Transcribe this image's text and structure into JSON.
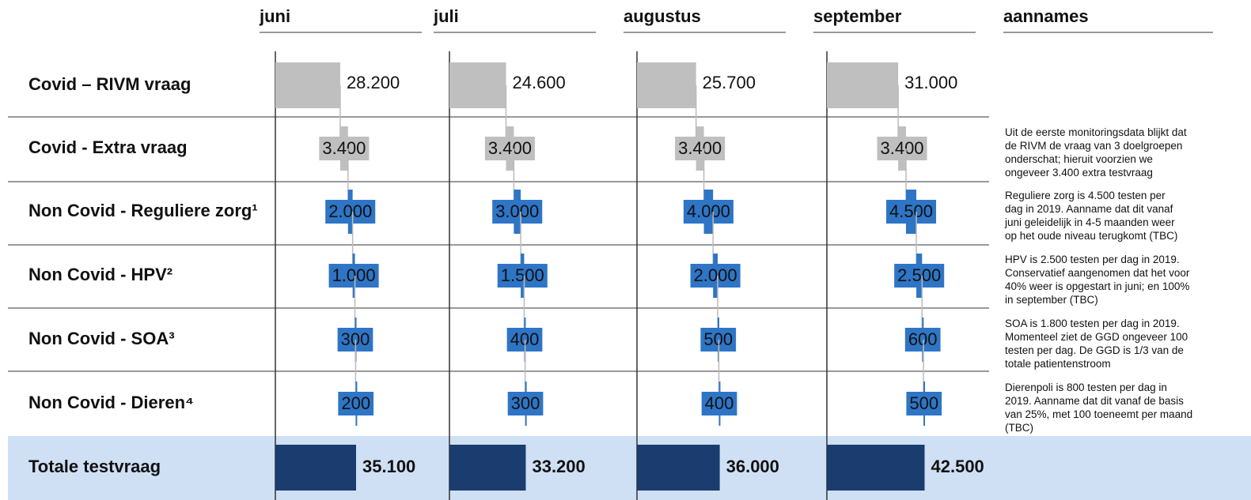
{
  "chart_data": {
    "type": "waterfall",
    "categories": [
      "Covid – RIVM vraag",
      "Covid - Extra vraag",
      "Non Covid - Reguliere zorg¹",
      "Non Covid - HPV²",
      "Non Covid - SOA³",
      "Non Covid - Dieren⁴",
      "Totale testvraag"
    ],
    "category_colors": [
      "#bfbfbf",
      "#bfbfbf",
      "#2e75c6",
      "#2e75c6",
      "#2e75c6",
      "#2e75c6",
      "#1a3c6e"
    ],
    "total_index": 6,
    "series": [
      {
        "name": "juni",
        "values": [
          28200,
          3400,
          2000,
          1000,
          300,
          200,
          35100
        ],
        "value_labels": [
          "28.200",
          "3.400",
          "2.000",
          "1.000",
          "300",
          "200",
          "35.100"
        ]
      },
      {
        "name": "juli",
        "values": [
          24600,
          3400,
          3000,
          1500,
          400,
          300,
          33200
        ],
        "value_labels": [
          "24.600",
          "3.400",
          "3.000",
          "1.500",
          "400",
          "300",
          "33.200"
        ]
      },
      {
        "name": "augustus",
        "values": [
          25700,
          3400,
          4000,
          2000,
          500,
          400,
          36000
        ],
        "value_labels": [
          "25.700",
          "3.400",
          "4.000",
          "2.000",
          "500",
          "400",
          "36.000"
        ]
      },
      {
        "name": "september",
        "values": [
          31000,
          3400,
          4500,
          2500,
          600,
          500,
          42500
        ],
        "value_labels": [
          "31.000",
          "3.400",
          "4.500",
          "2.500",
          "600",
          "500",
          "42.500"
        ]
      }
    ],
    "annotations_title": "aannames",
    "annotations": [
      null,
      [
        "Uit de eerste monitoringsdata blijkt dat",
        "de RIVM de vraag van 3 doelgroepen",
        "onderschat; hieruit voorzien we",
        "ongeveer 3.400 extra testvraag"
      ],
      [
        "Reguliere zorg is 4.500 testen per",
        "dag in 2019. Aanname dat dit vanaf",
        "juni geleidelijk in 4-5 maanden weer",
        "op het oude niveau terugkomt (TBC)"
      ],
      [
        "HPV is 2.500 testen per dag in 2019.",
        "Conservatief aangenomen dat het voor",
        "40% weer is opgestart in juni; en 100%",
        "in september (TBC)"
      ],
      [
        "SOA is 1.800 testen per dag in 2019.",
        "Momenteel ziet de GGD ongeveer 100",
        "testen per dag. De GGD is 1/3 van de",
        "totale patientenstroom"
      ],
      [
        "Dierenpoli is 800 testen per dag in",
        "2019. Aanname dat dit vanaf de basis",
        "van 25%, met 100 toeneemt per maand",
        "(TBC)"
      ],
      null
    ]
  }
}
